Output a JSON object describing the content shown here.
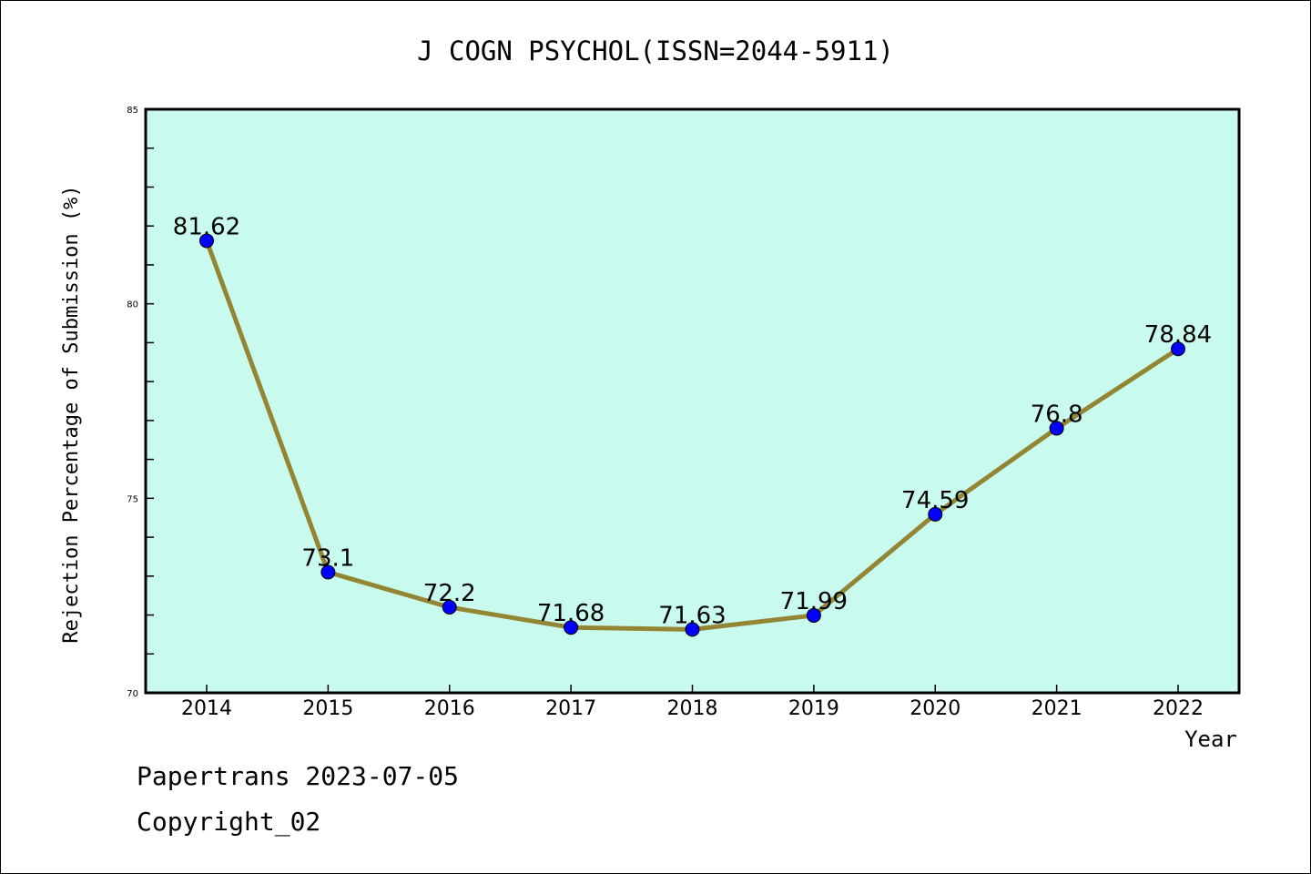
{
  "chart_data": {
    "type": "line",
    "title": "J COGN PSYCHOL(ISSN=2044-5911)",
    "xlabel": "Year",
    "ylabel": "Rejection Percentage of Submission (%)",
    "categories": [
      "2014",
      "2015",
      "2016",
      "2017",
      "2018",
      "2019",
      "2020",
      "2021",
      "2022"
    ],
    "values": [
      81.62,
      73.1,
      72.2,
      71.68,
      71.63,
      71.99,
      74.59,
      76.8,
      78.84
    ],
    "data_labels": [
      "81.62",
      "73.1",
      "72.2",
      "71.68",
      "71.63",
      "71.99",
      "74.59",
      "76.8",
      "78.84"
    ],
    "ylim": [
      70,
      85
    ],
    "yticks": [
      "70",
      "75",
      "80",
      "85"
    ],
    "ytick_values": [
      70,
      75,
      80,
      85
    ],
    "y_minor_step": 1,
    "grid": false,
    "colors": {
      "background": "#c8fbee",
      "line": "#948535",
      "marker": "#0000ff"
    }
  },
  "footer": {
    "line1": "Papertrans 2023-07-05",
    "line2": "Copyright_02"
  }
}
